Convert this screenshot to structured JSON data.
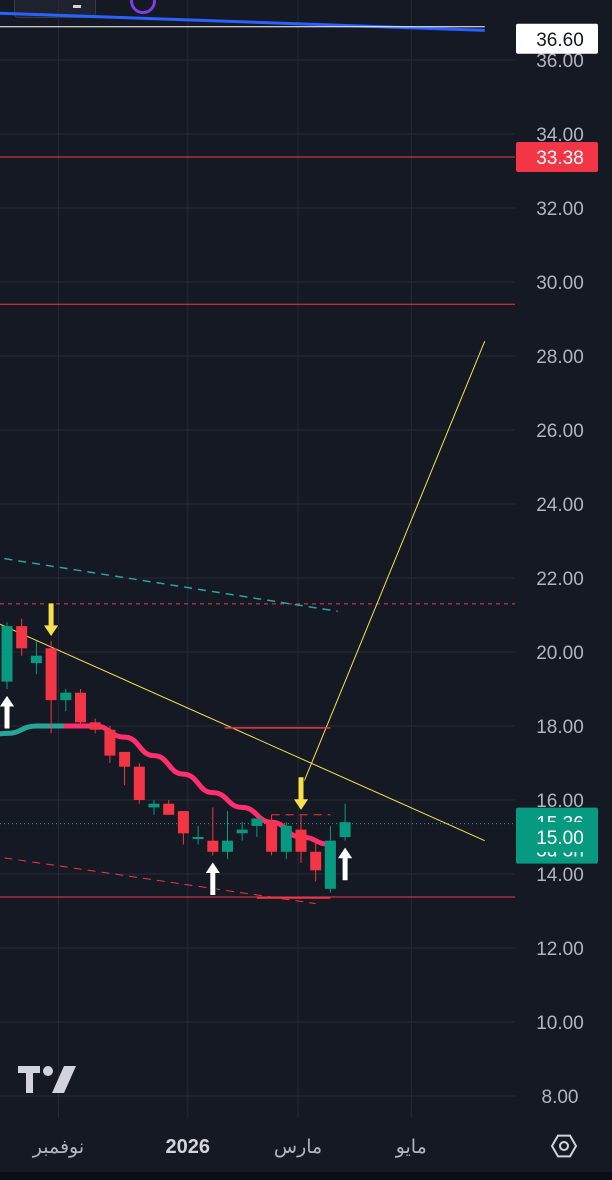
{
  "chart_data": {
    "type": "candlestick",
    "y_axis": {
      "range": [
        7.4,
        37.3
      ],
      "ticks": [
        "36.00",
        "34.00",
        "32.00",
        "30.00",
        "28.00",
        "26.00",
        "24.00",
        "22.00",
        "20.00",
        "18.00",
        "16.00",
        "14.00",
        "12.00",
        "10.00",
        "8.00"
      ],
      "grid": true
    },
    "x_axis": {
      "ticks": [
        {
          "label": "نوفمبر",
          "i": 3.5
        },
        {
          "label": "2026",
          "i": 12.3,
          "bold": true
        },
        {
          "label": "مارس",
          "i": 19.8
        },
        {
          "label": "مايو",
          "i": 27.5
        }
      ]
    },
    "price_labels": [
      {
        "value": 36.6,
        "label": "36.60",
        "style": "light"
      },
      {
        "value": 33.38,
        "label": "33.38",
        "style": "red"
      },
      {
        "value": 15.36,
        "label": "15.36",
        "sub": "3d 3h",
        "style": "green"
      },
      {
        "value": 15.0,
        "label": "15.00",
        "style": "green"
      }
    ],
    "candles": [
      {
        "i": 0,
        "o": 19.2,
        "c": 20.7,
        "h": 20.8,
        "l": 19.0
      },
      {
        "i": 1,
        "o": 20.7,
        "c": 20.1,
        "h": 20.9,
        "l": 19.9
      },
      {
        "i": 2,
        "o": 19.7,
        "c": 19.9,
        "h": 20.3,
        "l": 19.4
      },
      {
        "i": 3,
        "o": 20.1,
        "c": 18.7,
        "h": 20.3,
        "l": 17.8
      },
      {
        "i": 4,
        "o": 18.7,
        "c": 18.9,
        "h": 19.0,
        "l": 18.4
      },
      {
        "i": 5,
        "o": 18.9,
        "c": 18.1,
        "h": 19.0,
        "l": 18.0
      },
      {
        "i": 6,
        "o": 18.1,
        "c": 17.9,
        "h": 18.2,
        "l": 17.8
      },
      {
        "i": 7,
        "o": 17.9,
        "c": 17.2,
        "h": 18.0,
        "l": 17.0
      },
      {
        "i": 8,
        "o": 17.3,
        "c": 16.9,
        "h": 17.3,
        "l": 16.4
      },
      {
        "i": 9,
        "o": 16.9,
        "c": 16.0,
        "h": 17.0,
        "l": 15.9
      },
      {
        "i": 10,
        "o": 15.8,
        "c": 15.9,
        "h": 16.0,
        "l": 15.6
      },
      {
        "i": 11,
        "o": 15.9,
        "c": 15.6,
        "h": 16.0,
        "l": 15.6
      },
      {
        "i": 12,
        "o": 15.7,
        "c": 15.1,
        "h": 15.7,
        "l": 14.8
      },
      {
        "i": 13,
        "o": 15.0,
        "c": 15.0,
        "h": 15.3,
        "l": 14.8
      },
      {
        "i": 14,
        "o": 14.9,
        "c": 14.6,
        "h": 15.8,
        "l": 14.5
      },
      {
        "i": 15,
        "o": 14.6,
        "c": 14.9,
        "h": 15.7,
        "l": 14.4
      },
      {
        "i": 16,
        "o": 15.1,
        "c": 15.2,
        "h": 15.4,
        "l": 14.9
      },
      {
        "i": 17,
        "o": 15.3,
        "c": 15.5,
        "h": 15.5,
        "l": 15.0
      },
      {
        "i": 18,
        "o": 15.4,
        "c": 14.6,
        "h": 15.6,
        "l": 14.5
      },
      {
        "i": 19,
        "o": 14.6,
        "c": 15.3,
        "h": 15.4,
        "l": 14.4
      },
      {
        "i": 20,
        "o": 15.2,
        "c": 14.6,
        "h": 15.6,
        "l": 14.3
      },
      {
        "i": 21,
        "o": 14.6,
        "c": 14.1,
        "h": 14.9,
        "l": 13.8
      },
      {
        "i": 22,
        "o": 13.6,
        "c": 14.9,
        "h": 15.3,
        "l": 13.5
      },
      {
        "i": 23,
        "o": 15.0,
        "c": 15.4,
        "h": 15.9,
        "l": 14.9
      }
    ],
    "ema_curve": [
      {
        "i": -3,
        "v": 17.5
      },
      {
        "i": 0,
        "v": 17.8
      },
      {
        "i": 2,
        "v": 18.0
      },
      {
        "i": 4,
        "v": 18.0
      },
      {
        "i": 6,
        "v": 18.0
      },
      {
        "i": 8,
        "v": 17.7
      },
      {
        "i": 10,
        "v": 17.2
      },
      {
        "i": 12,
        "v": 16.7
      },
      {
        "i": 14,
        "v": 16.2
      },
      {
        "i": 16,
        "v": 15.8
      },
      {
        "i": 18,
        "v": 15.4
      },
      {
        "i": 20,
        "v": 15.0
      },
      {
        "i": 22,
        "v": 14.8
      }
    ],
    "ema_color_change_i": 4,
    "horizontal_levels": [
      {
        "value": 33.38,
        "color": "#f23645",
        "style": "solid"
      },
      {
        "value": 29.4,
        "color": "#f23645",
        "style": "solid"
      },
      {
        "value": 21.3,
        "color": "#f23645",
        "style": "dashed"
      },
      {
        "value": 13.38,
        "color": "#f23645",
        "style": "solid"
      }
    ],
    "trend_lines": [
      {
        "from": {
          "i": -3,
          "v": 37.3
        },
        "to": {
          "i": 32.5,
          "v": 36.8
        },
        "color": "#2962ff",
        "width": 3,
        "style": "solid"
      },
      {
        "from": {
          "i": -3,
          "v": 36.9
        },
        "to": {
          "i": 32.5,
          "v": 36.9
        },
        "color": "#ffffff",
        "width": 1,
        "style": "solid"
      },
      {
        "from": {
          "i": -3,
          "v": 21.2
        },
        "to": {
          "i": 32.5,
          "v": 14.9
        },
        "color": "#f7e04b",
        "width": 1,
        "style": "solid"
      },
      {
        "from": {
          "i": 20.0,
          "v": 16.3
        },
        "to": {
          "i": 32.5,
          "v": 28.4
        },
        "color": "#f7e04b",
        "width": 1,
        "style": "solid"
      },
      {
        "from": {
          "i": -3,
          "v": 22.7
        },
        "to": {
          "i": 22.5,
          "v": 21.1
        },
        "color": "#26a69a",
        "width": 1.5,
        "style": "dashed"
      },
      {
        "from": {
          "i": -3,
          "v": 14.6
        },
        "to": {
          "i": 21.0,
          "v": 13.2
        },
        "color": "#f23645",
        "width": 1,
        "style": "dashed"
      },
      {
        "from": {
          "i": 14.8,
          "v": 17.95
        },
        "to": {
          "i": 22.0,
          "v": 17.95
        },
        "color": "#f23645",
        "width": 1.5,
        "style": "solid"
      },
      {
        "from": {
          "i": 18.0,
          "v": 15.6
        },
        "to": {
          "i": 22.0,
          "v": 15.6
        },
        "color": "#f23645",
        "width": 1,
        "style": "dashed"
      },
      {
        "from": {
          "i": 17.0,
          "v": 13.35
        },
        "to": {
          "i": 22.0,
          "v": 13.35
        },
        "color": "#f23645",
        "width": 1.5,
        "style": "solid"
      }
    ],
    "current_price_line": {
      "value": 15.36,
      "color": "#26a69a"
    },
    "signal_arrows": [
      {
        "i": 0,
        "type": "up",
        "color": "white"
      },
      {
        "i": 3,
        "type": "down",
        "color": "yellow"
      },
      {
        "i": 14,
        "type": "up",
        "color": "white"
      },
      {
        "i": 20,
        "type": "down",
        "color": "yellow"
      },
      {
        "i": 23,
        "type": "up",
        "color": "white"
      }
    ],
    "colors": {
      "up": "#089981",
      "down": "#f23645",
      "ema_up": "#26a69a",
      "ema_down": "#ff2e6e",
      "background": "#151924",
      "grid": "#262a35"
    }
  },
  "icons": {
    "logo": "tradingview-logo",
    "settings": "settings-gear-icon"
  }
}
